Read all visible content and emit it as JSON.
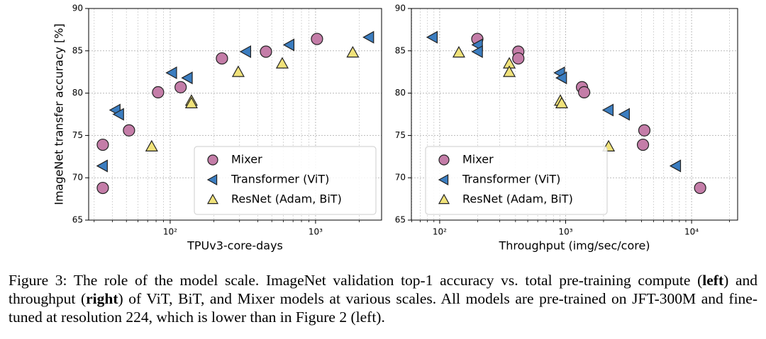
{
  "chart_data": [
    {
      "type": "scatter",
      "xlabel": "TPUv3-core-days",
      "ylabel": "ImageNet transfer accuracy [%]",
      "xscale": "log",
      "xlim": [
        27.5,
        2845
      ],
      "ylim": [
        65,
        90
      ],
      "xticks": [
        {
          "value": 100,
          "label": "10²"
        },
        {
          "value": 1000,
          "label": "10³"
        }
      ],
      "xticks_minor": [
        30,
        40,
        50,
        60,
        70,
        80,
        90,
        200,
        300,
        400,
        500,
        600,
        700,
        800,
        900,
        2000
      ],
      "yticks": [
        65,
        70,
        75,
        80,
        85,
        90
      ],
      "grid": true,
      "legend": "lower right",
      "series": [
        {
          "name": "Mixer",
          "color": "#c47da8",
          "marker": "o",
          "x": [
            34.4,
            34.4,
            52.1,
            82.6,
            118,
            227,
            456,
            1023
          ],
          "values": [
            73.9,
            68.8,
            75.6,
            80.1,
            80.7,
            84.1,
            84.9,
            86.4
          ]
        },
        {
          "name": "Transformer (ViT)",
          "color": "#3b7dc0",
          "marker": "<",
          "x": [
            34.4,
            42.1,
            44.5,
            103,
            132,
            333,
            661,
            2334
          ],
          "values": [
            71.4,
            78.0,
            77.5,
            82.4,
            81.8,
            84.9,
            85.7,
            86.6
          ]
        },
        {
          "name": "ResNet (Adam, BiT)",
          "color": "#f0e27a",
          "marker": "^",
          "x": [
            74.6,
            140,
            140,
            294,
            590,
            1803
          ],
          "values": [
            73.7,
            79.1,
            78.8,
            82.5,
            83.5,
            84.8
          ]
        }
      ]
    },
    {
      "type": "scatter",
      "xlabel": "Throughput (img/sec/core)",
      "xscale": "log",
      "xlim": [
        59.6,
        23200
      ],
      "ylim": [
        65,
        90
      ],
      "xticks": [
        {
          "value": 100,
          "label": "10²"
        },
        {
          "value": 1000,
          "label": "10³"
        },
        {
          "value": 10000,
          "label": "10⁴"
        }
      ],
      "xticks_minor": [
        60,
        70,
        80,
        90,
        200,
        300,
        400,
        500,
        600,
        700,
        800,
        900,
        2000,
        3000,
        4000,
        5000,
        6000,
        7000,
        8000,
        9000,
        20000
      ],
      "yticks": [
        65,
        70,
        75,
        80,
        85,
        90
      ],
      "grid": true,
      "legend": "lower left",
      "series": [
        {
          "name": "Mixer",
          "color": "#c47da8",
          "marker": "o",
          "x": [
            199,
            421,
            421,
            1349,
            1403,
            4217,
            4112,
            11690
          ],
          "values": [
            86.4,
            84.9,
            84.1,
            80.7,
            80.1,
            75.6,
            73.9,
            68.8
          ]
        },
        {
          "name": "Transformer (ViT)",
          "color": "#3b7dc0",
          "marker": "<",
          "x": [
            88,
            201,
            201,
            902,
            935,
            2193,
            2951,
            7520
          ],
          "values": [
            86.6,
            85.7,
            84.9,
            82.4,
            81.8,
            78.0,
            77.5,
            71.4
          ]
        },
        {
          "name": "ResNet (Adam, BiT)",
          "color": "#f0e27a",
          "marker": "^",
          "x": [
            142,
            357,
            357,
            908,
            931,
            2193
          ],
          "values": [
            84.8,
            83.5,
            82.5,
            79.1,
            78.8,
            73.7
          ]
        }
      ]
    }
  ],
  "caption": [
    "Figure 3: The role of the model scale. ImageNet validation top-1 accuracy vs. total pre-training compute (",
    "left",
    ") and throughput (",
    "right",
    ") of ViT, BiT, and Mixer models at various scales. All models are pre-trained on JFT-300M and fine-tuned at resolution 224, which is lower than in Figure 2 (left)."
  ]
}
